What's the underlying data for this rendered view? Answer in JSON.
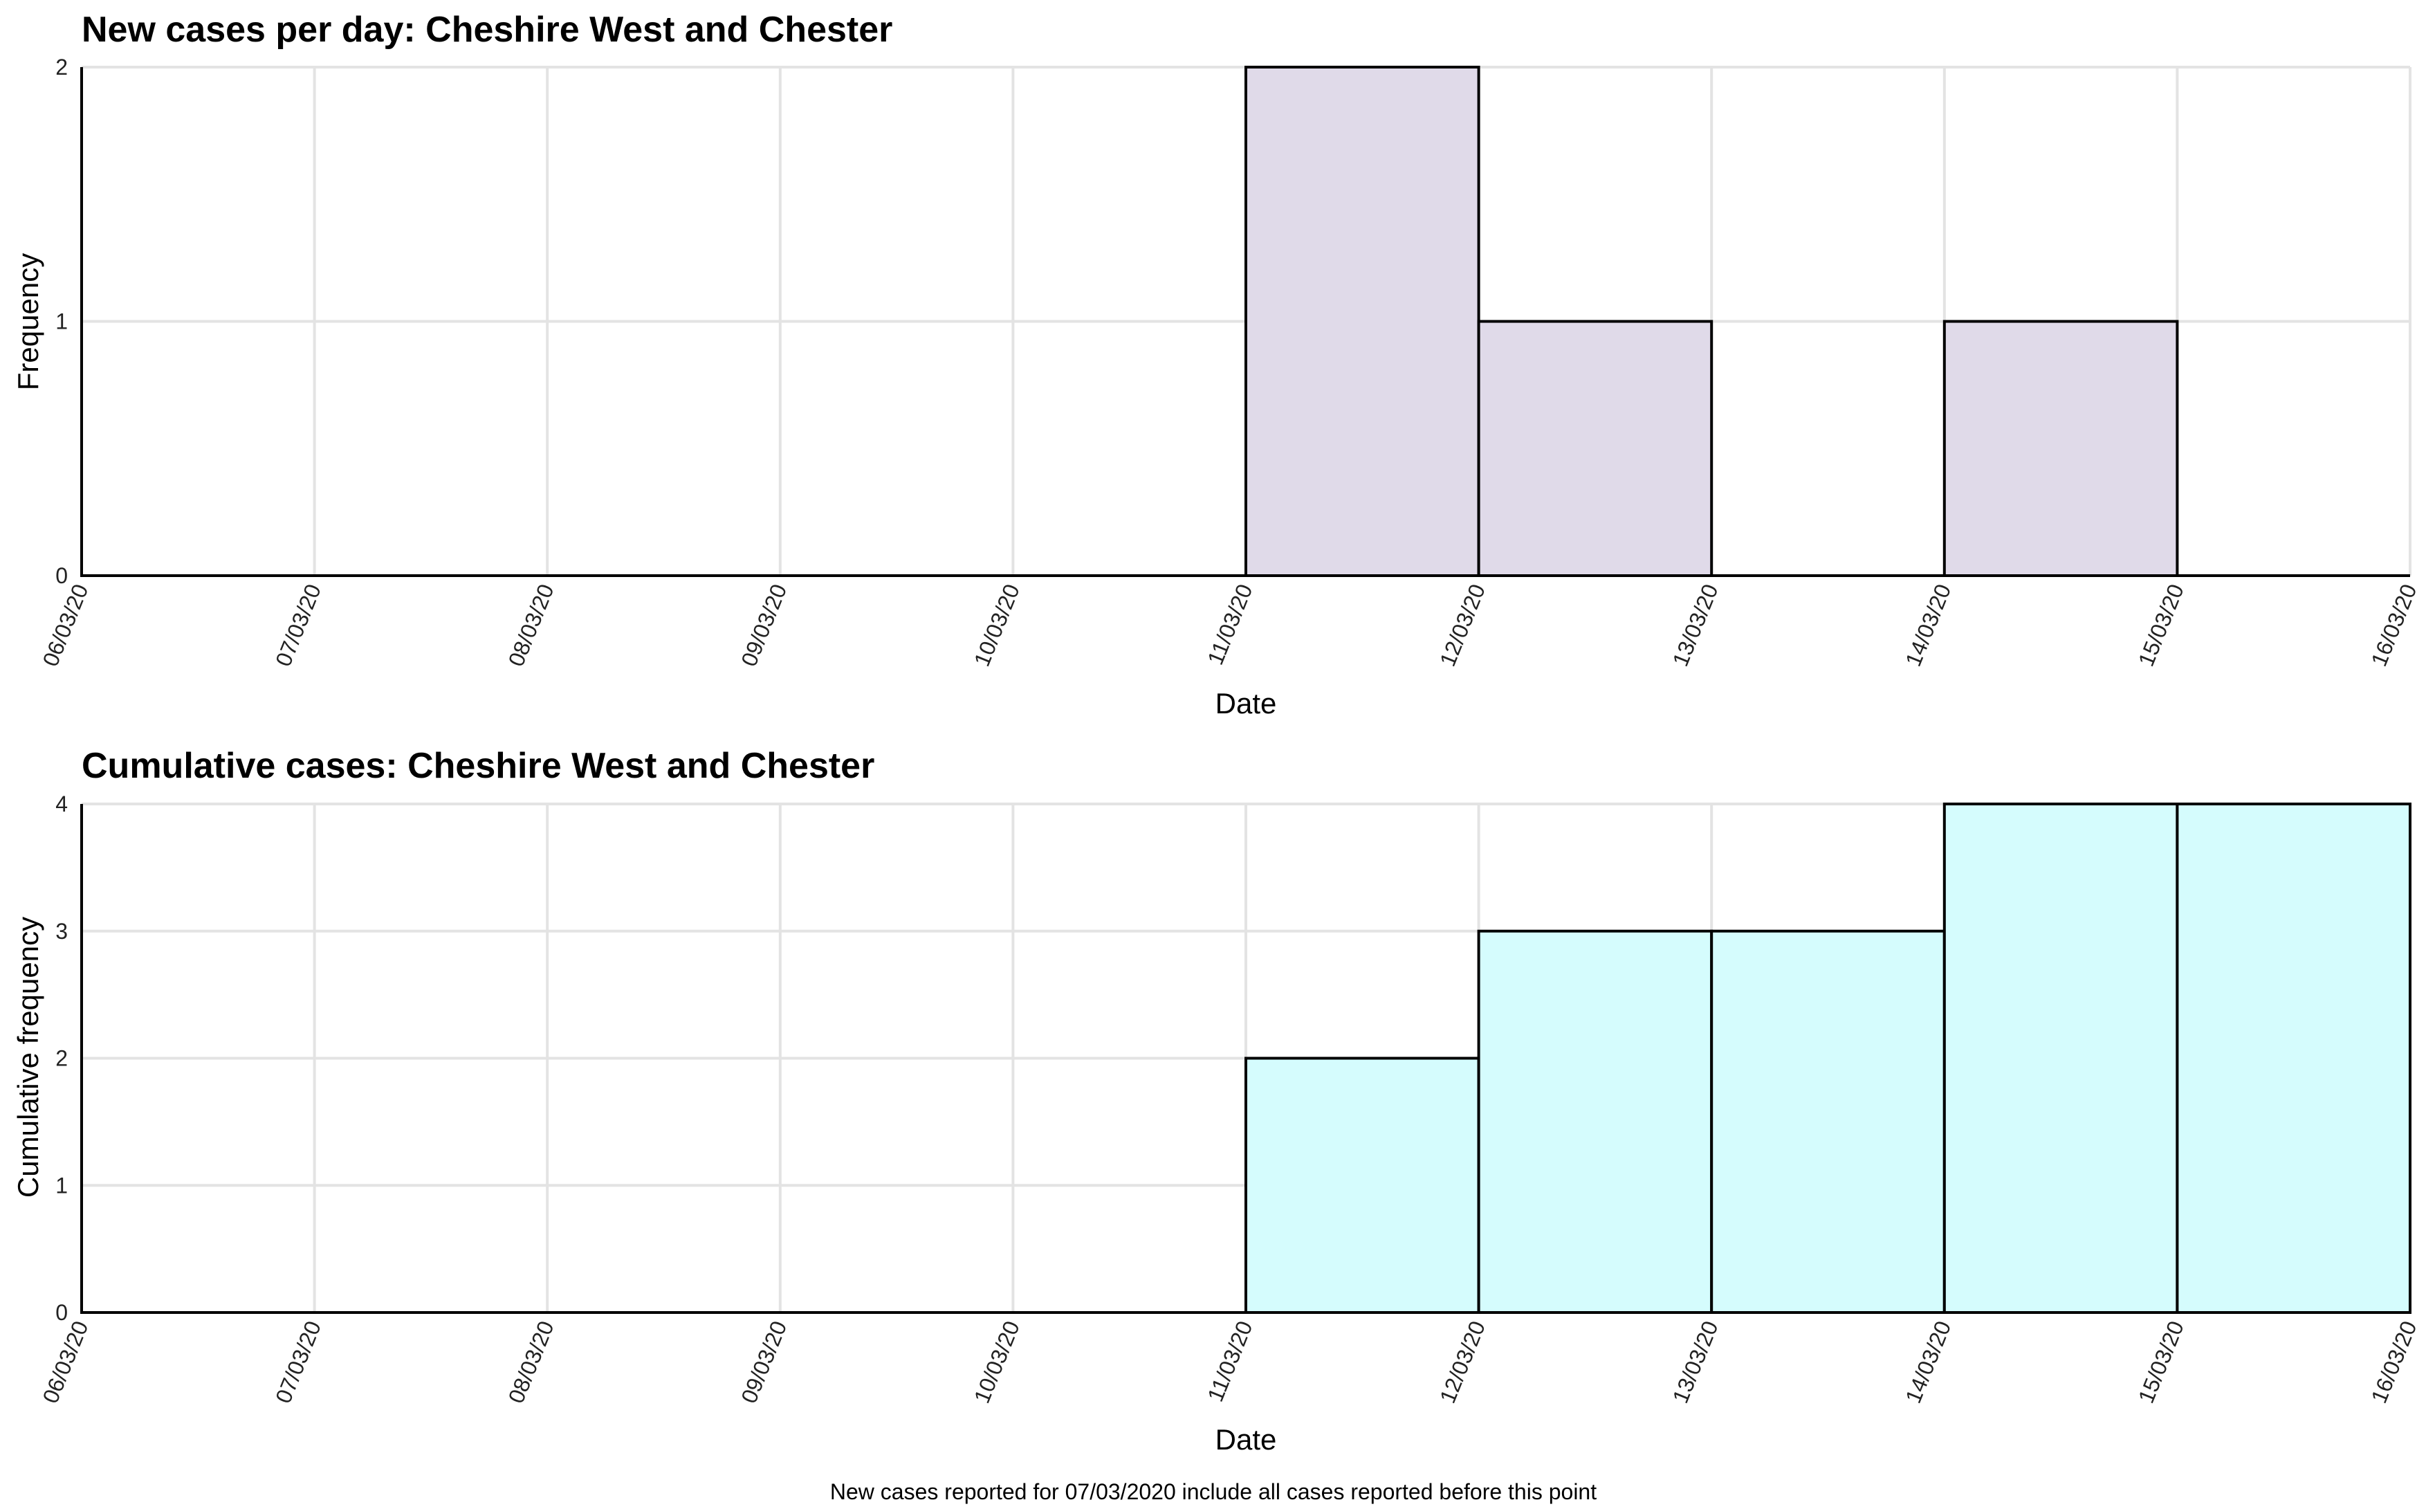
{
  "chart_data": [
    {
      "type": "bar",
      "title": "New cases per day: Cheshire West and Chester",
      "xlabel": "Date",
      "ylabel": "Frequency",
      "ylim": [
        0,
        2
      ],
      "yticks": [
        "0",
        "1",
        "2"
      ],
      "x_tick_labels": [
        "06/03/20",
        "07/03/20",
        "08/03/20",
        "09/03/20",
        "10/03/20",
        "11/03/20",
        "12/03/20",
        "13/03/20",
        "14/03/20",
        "15/03/20",
        "16/03/20"
      ],
      "categories": [
        "06/03/20",
        "07/03/20",
        "08/03/20",
        "09/03/20",
        "10/03/20",
        "11/03/20",
        "12/03/20",
        "13/03/20",
        "14/03/20",
        "15/03/20"
      ],
      "values": [
        0,
        0,
        0,
        0,
        0,
        2,
        1,
        0,
        1,
        0
      ],
      "fill": "#e0dae9",
      "grid": true
    },
    {
      "type": "bar",
      "title": "Cumulative cases: Cheshire West and Chester",
      "xlabel": "Date",
      "ylabel": "Cumulative frequency",
      "ylim": [
        0,
        4
      ],
      "yticks": [
        "0",
        "1",
        "2",
        "3",
        "4"
      ],
      "x_tick_labels": [
        "06/03/20",
        "07/03/20",
        "08/03/20",
        "09/03/20",
        "10/03/20",
        "11/03/20",
        "12/03/20",
        "13/03/20",
        "14/03/20",
        "15/03/20",
        "16/03/20"
      ],
      "categories": [
        "06/03/20",
        "07/03/20",
        "08/03/20",
        "09/03/20",
        "10/03/20",
        "11/03/20",
        "12/03/20",
        "13/03/20",
        "14/03/20",
        "15/03/20"
      ],
      "values": [
        0,
        0,
        0,
        0,
        0,
        2,
        3,
        3,
        4,
        4
      ],
      "fill": "#d5fcfd",
      "grid": true
    }
  ],
  "caption": "New cases reported for 07/03/2020 include all cases reported before this point"
}
